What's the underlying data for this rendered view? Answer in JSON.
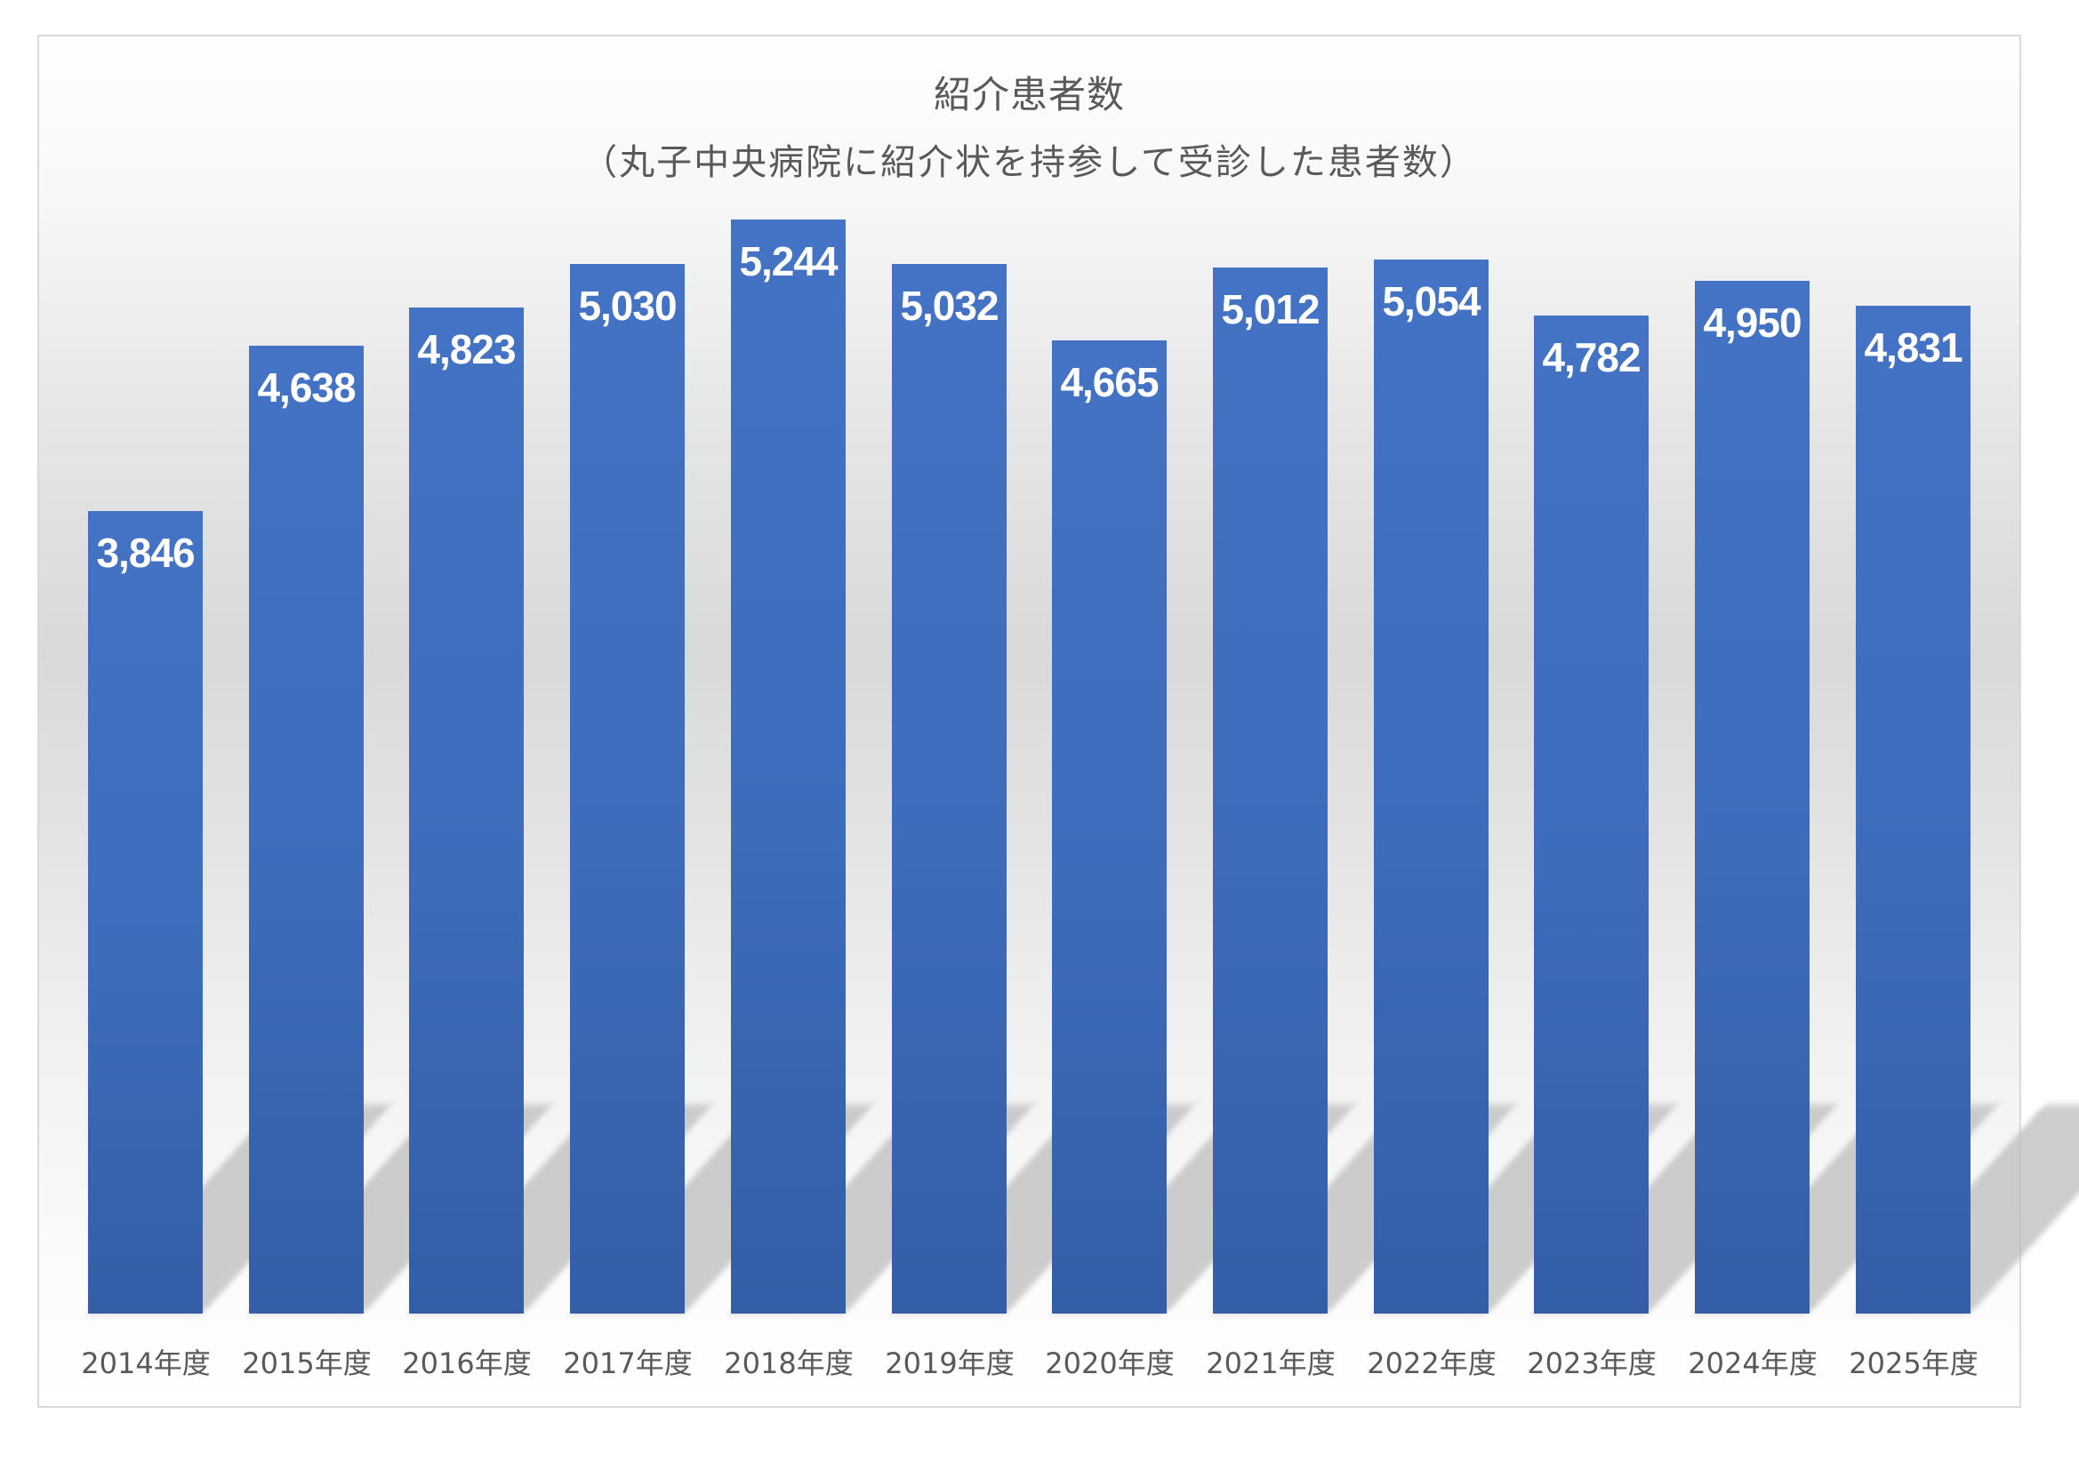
{
  "chart": {
    "title": "紹介患者数",
    "subtitle": "（丸子中央病院に紹介状を持参して受診した患者数）"
  },
  "colors": {
    "bar_top": "#4472c4",
    "bar_bottom": "#345ea6",
    "label_text": "#ffffff",
    "axis_text": "#595959",
    "border": "#d9d9d9"
  },
  "chart_data": {
    "type": "bar",
    "title": "紹介患者数",
    "subtitle": "（丸子中央病院に紹介状を持参して受診した患者数）",
    "categories": [
      "2014年度",
      "2015年度",
      "2016年度",
      "2017年度",
      "2018年度",
      "2019年度",
      "2020年度",
      "2021年度",
      "2022年度",
      "2023年度",
      "2024年度",
      "2025年度"
    ],
    "values": [
      3846,
      4638,
      4823,
      5030,
      5244,
      5032,
      4665,
      5012,
      5054,
      4782,
      4950,
      4831
    ],
    "value_labels": [
      "3,846",
      "4,638",
      "4,823",
      "5,030",
      "5,244",
      "5,032",
      "4,665",
      "5,012",
      "5,054",
      "4,782",
      "4,950",
      "4,831"
    ],
    "xlabel": "",
    "ylabel": "",
    "ylim": [
      0,
      6000
    ],
    "grid": false,
    "legend": "none",
    "data_labels": "inside-end"
  }
}
